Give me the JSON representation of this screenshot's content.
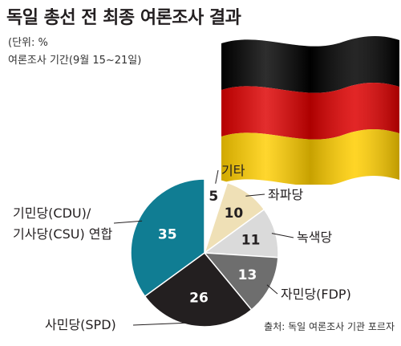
{
  "header": {
    "title": "독일 총선 전 최종 여론조사 결과",
    "unit": "(단위: %",
    "period": "여론조사 기간(9월 15~21일)"
  },
  "footer": {
    "source": "출처: 독일 여론조사 기관 포르자"
  },
  "flag": {
    "colors": [
      "#000000",
      "#dd0000",
      "#ffce00"
    ]
  },
  "chart_data": {
    "type": "pie",
    "title": "독일 총선 전 최종 여론조사 결과",
    "unit": "%",
    "slices": [
      {
        "label": "기타",
        "value": 5,
        "color": "#ffffff",
        "value_color": "#231f20"
      },
      {
        "label": "좌파당",
        "value": 10,
        "color": "#efe0b6",
        "value_color": "#231f20"
      },
      {
        "label": "녹색당",
        "value": 11,
        "color": "#dadada",
        "value_color": "#231f20"
      },
      {
        "label": "자민당(FDP)",
        "value": 13,
        "color": "#6e6e6e",
        "value_color": "#ffffff"
      },
      {
        "label": "사민당(SPD)",
        "value": 26,
        "color": "#231f20",
        "value_color": "#ffffff"
      },
      {
        "label": "기민당(CDU)/ 기사당(CSU) 연합",
        "label_lines": [
          "기민당(CDU)/",
          "기사당(CSU) 연합"
        ],
        "value": 35,
        "color": "#107d93",
        "value_color": "#ffffff"
      }
    ]
  }
}
